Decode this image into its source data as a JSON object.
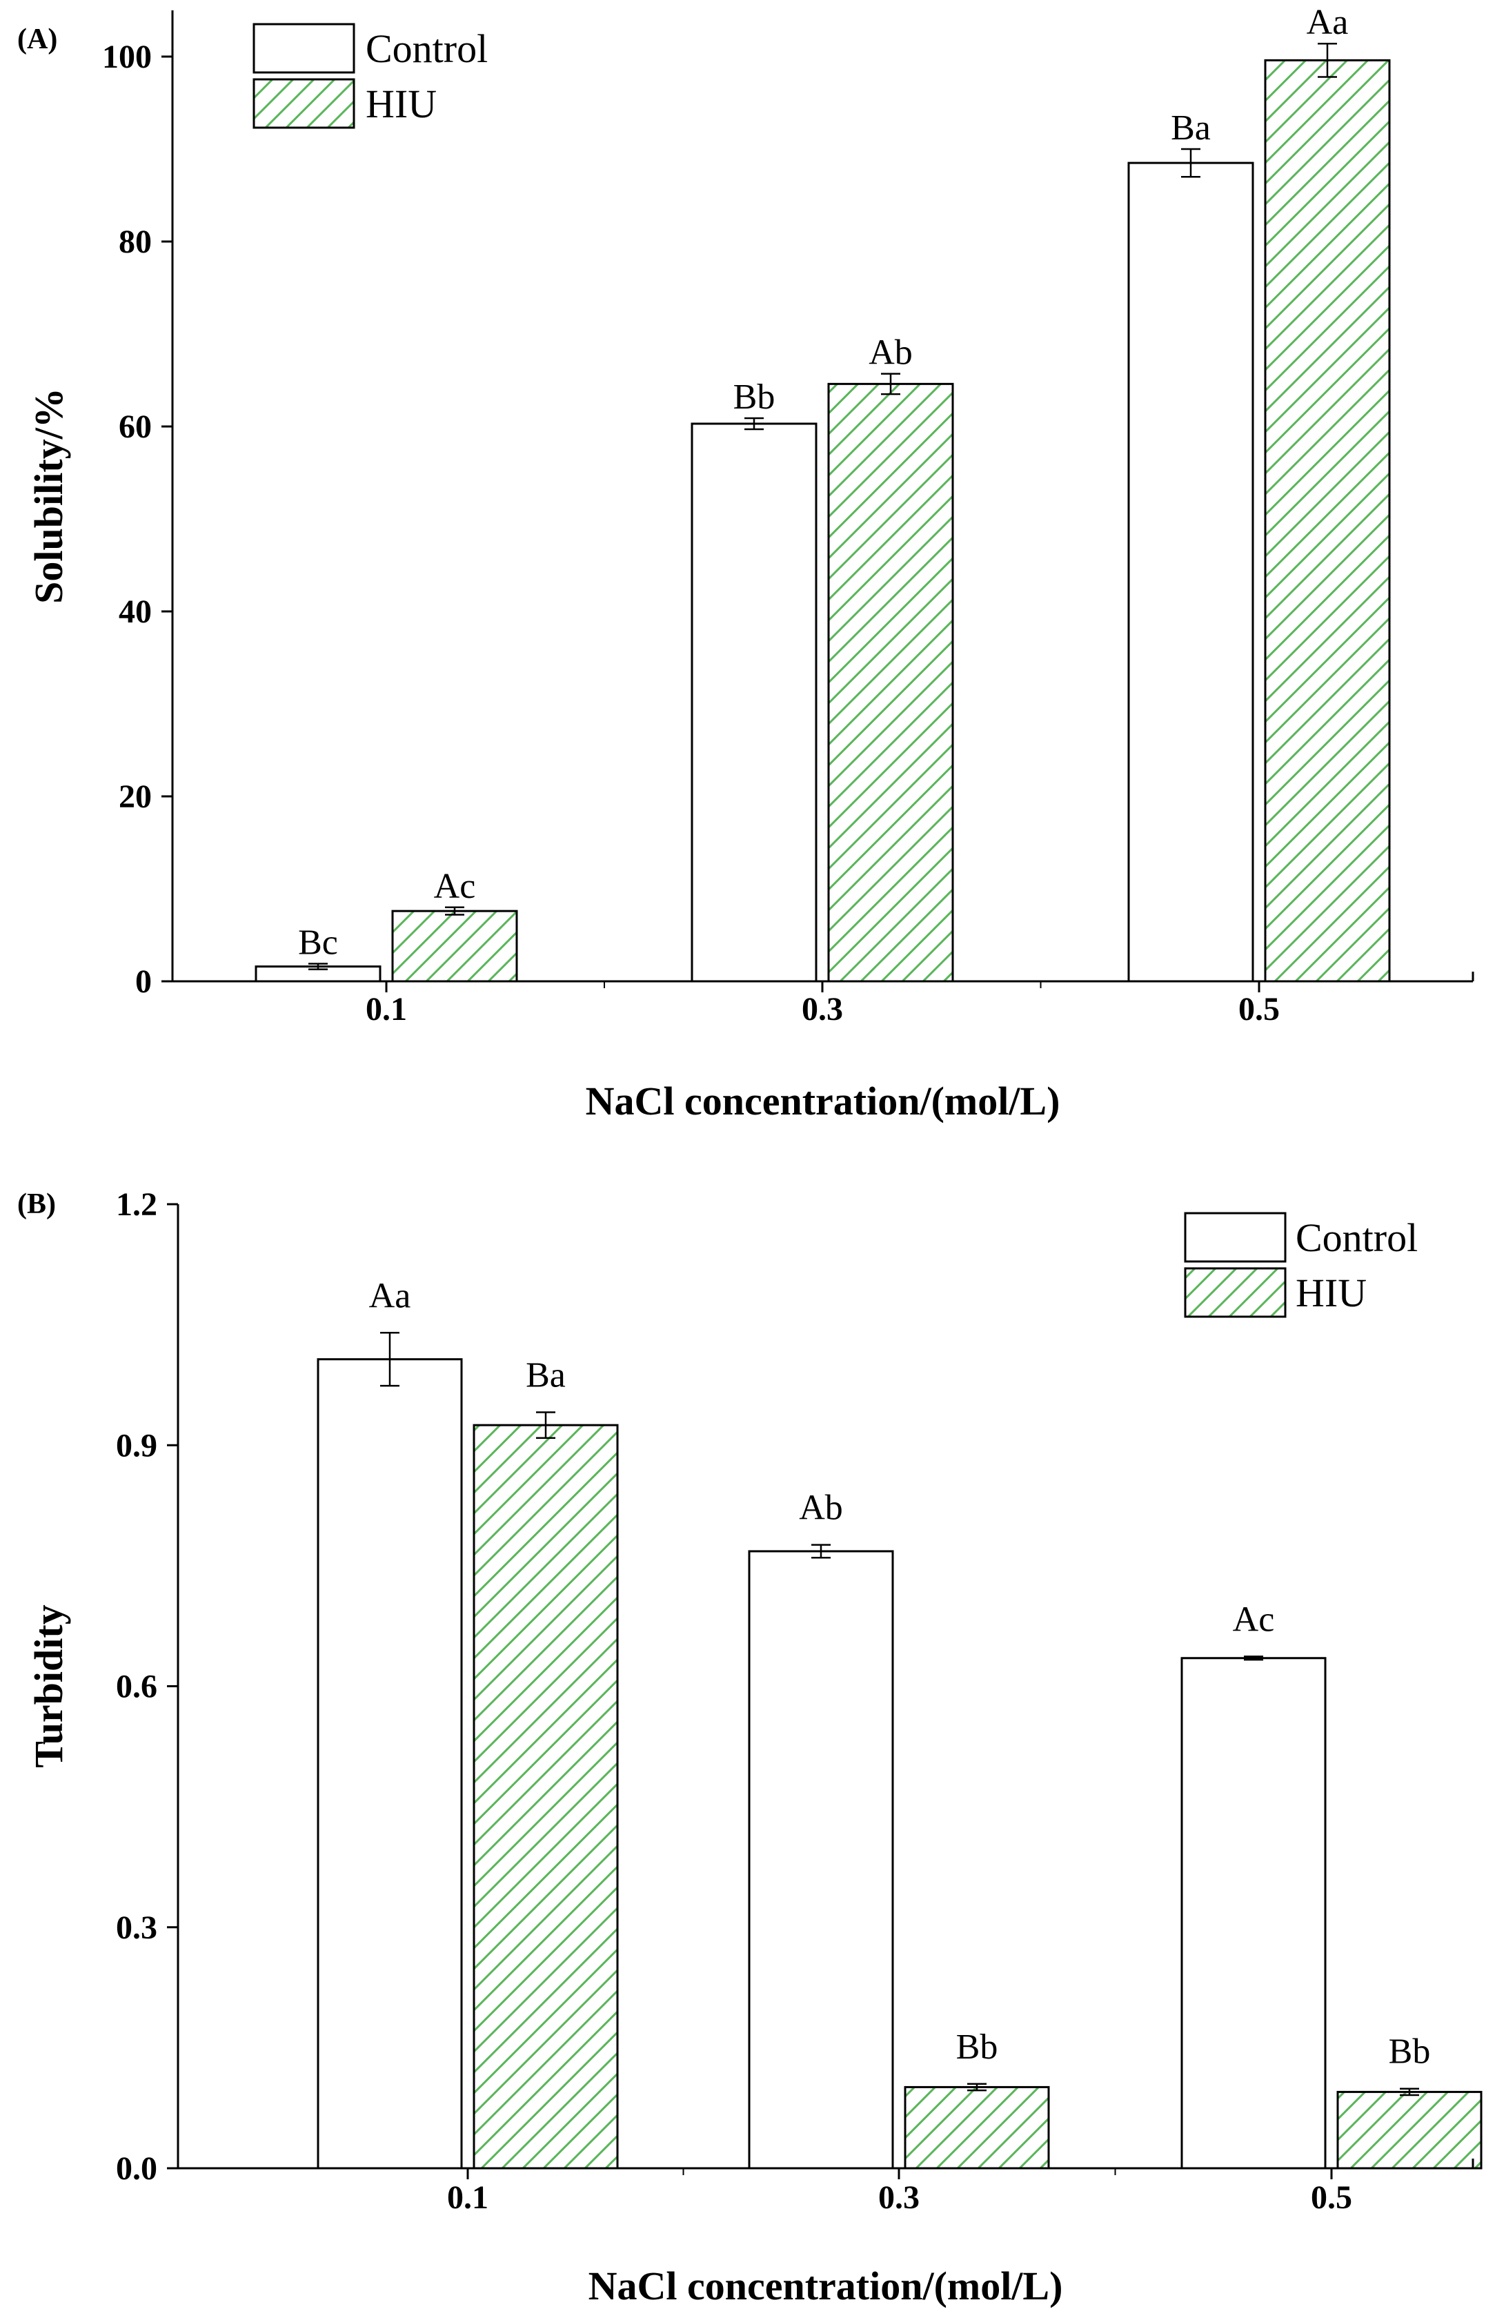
{
  "chart_data": [
    {
      "panel_label": "(A)",
      "type": "bar",
      "xlabel": "NaCl concentration/(mol/L)",
      "ylabel": "Solubility/%",
      "categories": [
        "0.1",
        "0.3",
        "0.5"
      ],
      "ylim": [
        0,
        105
      ],
      "yticks": [
        0,
        20,
        40,
        60,
        80,
        100
      ],
      "ytick_labels": [
        "0",
        "20",
        "40",
        "60",
        "80",
        "100"
      ],
      "legend_position": "top-left",
      "series": [
        {
          "name": "Control",
          "pattern": "none",
          "values": [
            1.6,
            60.3,
            88.5
          ],
          "errors": [
            0.3,
            0.6,
            1.5
          ],
          "labels": [
            "Bc",
            "Bb",
            "Ba"
          ]
        },
        {
          "name": "HIU",
          "pattern": "hatch",
          "values": [
            7.6,
            64.6,
            99.6
          ],
          "errors": [
            0.4,
            1.1,
            1.8
          ],
          "labels": [
            "Ac",
            "Ab",
            "Aa"
          ]
        }
      ],
      "hatch_color": "#5ab55a"
    },
    {
      "panel_label": "(B)",
      "type": "bar",
      "xlabel": "NaCl concentration/(mol/L)",
      "ylabel": "Turbidity",
      "categories": [
        "0.1",
        "0.3",
        "0.5"
      ],
      "ylim": [
        0,
        1.2
      ],
      "yticks": [
        0,
        0.3,
        0.6,
        0.9,
        1.2
      ],
      "ytick_labels": [
        "0.0",
        "0.3",
        "0.6",
        "0.9",
        "1.2"
      ],
      "legend_position": "top-right",
      "series": [
        {
          "name": "Control",
          "pattern": "none",
          "values": [
            1.007,
            0.768,
            0.635
          ],
          "errors": [
            0.033,
            0.008,
            0.002
          ],
          "labels": [
            "Aa",
            "Ab",
            "Ac"
          ]
        },
        {
          "name": "HIU",
          "pattern": "hatch",
          "values": [
            0.925,
            0.101,
            0.095
          ],
          "errors": [
            0.016,
            0.004,
            0.004
          ],
          "labels": [
            "Ba",
            "Bb",
            "Bb"
          ]
        }
      ],
      "hatch_color": "#5ab55a"
    }
  ]
}
